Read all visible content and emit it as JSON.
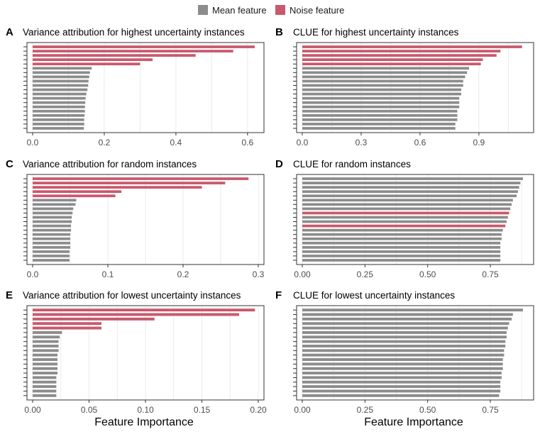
{
  "legend": {
    "items": [
      {
        "label": "Mean feature",
        "color": "#8c8c8c"
      },
      {
        "label": "Noise feature",
        "color": "#c9596c"
      }
    ]
  },
  "xlabel": "Feature Importance",
  "chart_data": [
    {
      "letter": "A",
      "type": "bar",
      "orientation": "horizontal",
      "title": "Variance attribution for highest uncertainty instances",
      "xlim": [
        0,
        0.63
      ],
      "xticks": [
        0.0,
        0.2,
        0.4,
        0.6
      ],
      "xtick_labels": [
        "0.0",
        "0.2",
        "0.4",
        "0.6"
      ],
      "grid": true,
      "series": [
        {
          "name": "Noise feature",
          "values": [
            0.62,
            0.56,
            0.455,
            0.335,
            0.3
          ]
        },
        {
          "name": "Mean feature",
          "values": [
            0.165,
            0.16,
            0.158,
            0.156,
            0.155,
            0.153,
            0.15,
            0.148,
            0.147,
            0.146,
            0.146,
            0.145,
            0.144,
            0.144,
            0.143
          ]
        }
      ]
    },
    {
      "letter": "B",
      "type": "bar",
      "orientation": "horizontal",
      "title": "CLUE for highest uncertainty instances",
      "xlim": [
        0,
        1.15
      ],
      "xticks": [
        0.0,
        0.3,
        0.6,
        0.9
      ],
      "xtick_labels": [
        "0.0",
        "0.3",
        "0.6",
        "0.9"
      ],
      "grid": true,
      "series": [
        {
          "name": "Noise feature",
          "values": [
            1.12,
            1.01,
            0.99,
            0.92,
            0.91
          ]
        },
        {
          "name": "Mean feature",
          "values": [
            0.85,
            0.84,
            0.83,
            0.82,
            0.82,
            0.81,
            0.81,
            0.8,
            0.8,
            0.8,
            0.79,
            0.79,
            0.79,
            0.78,
            0.78
          ]
        }
      ]
    },
    {
      "letter": "C",
      "type": "bar",
      "orientation": "horizontal",
      "title": "Variance attribution for random instances",
      "xlim": [
        0,
        0.3
      ],
      "xticks": [
        0.0,
        0.1,
        0.2,
        0.3
      ],
      "xtick_labels": [
        "0.0",
        "0.1",
        "0.2",
        "0.3"
      ],
      "grid": true,
      "series": [
        {
          "name": "Noise feature",
          "values": [
            0.287,
            0.256,
            0.225,
            0.118,
            0.11
          ]
        },
        {
          "name": "Mean feature",
          "values": [
            0.058,
            0.057,
            0.054,
            0.053,
            0.052,
            0.052,
            0.051,
            0.051,
            0.05,
            0.05,
            0.05,
            0.05,
            0.049,
            0.049,
            0.049
          ]
        }
      ]
    },
    {
      "letter": "D",
      "type": "bar",
      "orientation": "horizontal",
      "title": "CLUE for random instances",
      "xlim": [
        0,
        0.9
      ],
      "xticks": [
        0.0,
        0.25,
        0.5,
        0.75
      ],
      "xtick_labels": [
        "0.00",
        "0.25",
        "0.50",
        "0.75"
      ],
      "grid": true,
      "categories_note": "bars top to bottom",
      "bars": [
        {
          "value": 0.88,
          "group": "Mean feature"
        },
        {
          "value": 0.87,
          "group": "Mean feature"
        },
        {
          "value": 0.865,
          "group": "Mean feature"
        },
        {
          "value": 0.86,
          "group": "Mean feature"
        },
        {
          "value": 0.855,
          "group": "Mean feature"
        },
        {
          "value": 0.84,
          "group": "Mean feature"
        },
        {
          "value": 0.835,
          "group": "Mean feature"
        },
        {
          "value": 0.83,
          "group": "Mean feature"
        },
        {
          "value": 0.825,
          "group": "Noise feature"
        },
        {
          "value": 0.82,
          "group": "Mean feature"
        },
        {
          "value": 0.815,
          "group": "Mean feature"
        },
        {
          "value": 0.81,
          "group": "Noise feature"
        },
        {
          "value": 0.8,
          "group": "Mean feature"
        },
        {
          "value": 0.795,
          "group": "Mean feature"
        },
        {
          "value": 0.795,
          "group": "Mean feature"
        },
        {
          "value": 0.79,
          "group": "Mean feature"
        },
        {
          "value": 0.79,
          "group": "Mean feature"
        },
        {
          "value": 0.79,
          "group": "Mean feature"
        },
        {
          "value": 0.79,
          "group": "Mean feature"
        },
        {
          "value": 0.79,
          "group": "Mean feature"
        }
      ]
    },
    {
      "letter": "E",
      "type": "bar",
      "orientation": "horizontal",
      "title": "Variance attribution for lowest uncertainty instances",
      "xlim": [
        0,
        0.2
      ],
      "xticks": [
        0.0,
        0.05,
        0.1,
        0.15,
        0.2
      ],
      "xtick_labels": [
        "0.00",
        "0.05",
        "0.10",
        "0.15",
        "0.20"
      ],
      "grid": true,
      "series": [
        {
          "name": "Noise feature",
          "values": [
            0.197,
            0.183,
            0.108,
            0.061,
            0.061
          ]
        },
        {
          "name": "Mean feature",
          "values": [
            0.026,
            0.024,
            0.023,
            0.023,
            0.023,
            0.022,
            0.022,
            0.022,
            0.022,
            0.022,
            0.021,
            0.021,
            0.021,
            0.021,
            0.021
          ]
        }
      ]
    },
    {
      "letter": "F",
      "type": "bar",
      "orientation": "horizontal",
      "title": "CLUE for lowest uncertainty instances",
      "xlim": [
        0,
        0.9
      ],
      "xticks": [
        0.0,
        0.25,
        0.5,
        0.75
      ],
      "xtick_labels": [
        "0.00",
        "0.25",
        "0.50",
        "0.75"
      ],
      "grid": true,
      "bars": [
        {
          "value": 0.88,
          "group": "Mean feature"
        },
        {
          "value": 0.84,
          "group": "Mean feature"
        },
        {
          "value": 0.835,
          "group": "Mean feature"
        },
        {
          "value": 0.825,
          "group": "Mean feature"
        },
        {
          "value": 0.82,
          "group": "Mean feature"
        },
        {
          "value": 0.815,
          "group": "Mean feature"
        },
        {
          "value": 0.815,
          "group": "Mean feature"
        },
        {
          "value": 0.81,
          "group": "Mean feature"
        },
        {
          "value": 0.81,
          "group": "Mean feature"
        },
        {
          "value": 0.805,
          "group": "Mean feature"
        },
        {
          "value": 0.805,
          "group": "Mean feature"
        },
        {
          "value": 0.8,
          "group": "Mean feature"
        },
        {
          "value": 0.8,
          "group": "Mean feature"
        },
        {
          "value": 0.8,
          "group": "Mean feature"
        },
        {
          "value": 0.795,
          "group": "Mean feature"
        },
        {
          "value": 0.795,
          "group": "Mean feature"
        },
        {
          "value": 0.79,
          "group": "Mean feature"
        },
        {
          "value": 0.79,
          "group": "Mean feature"
        },
        {
          "value": 0.79,
          "group": "Mean feature"
        },
        {
          "value": 0.785,
          "group": "Mean feature"
        }
      ]
    }
  ]
}
